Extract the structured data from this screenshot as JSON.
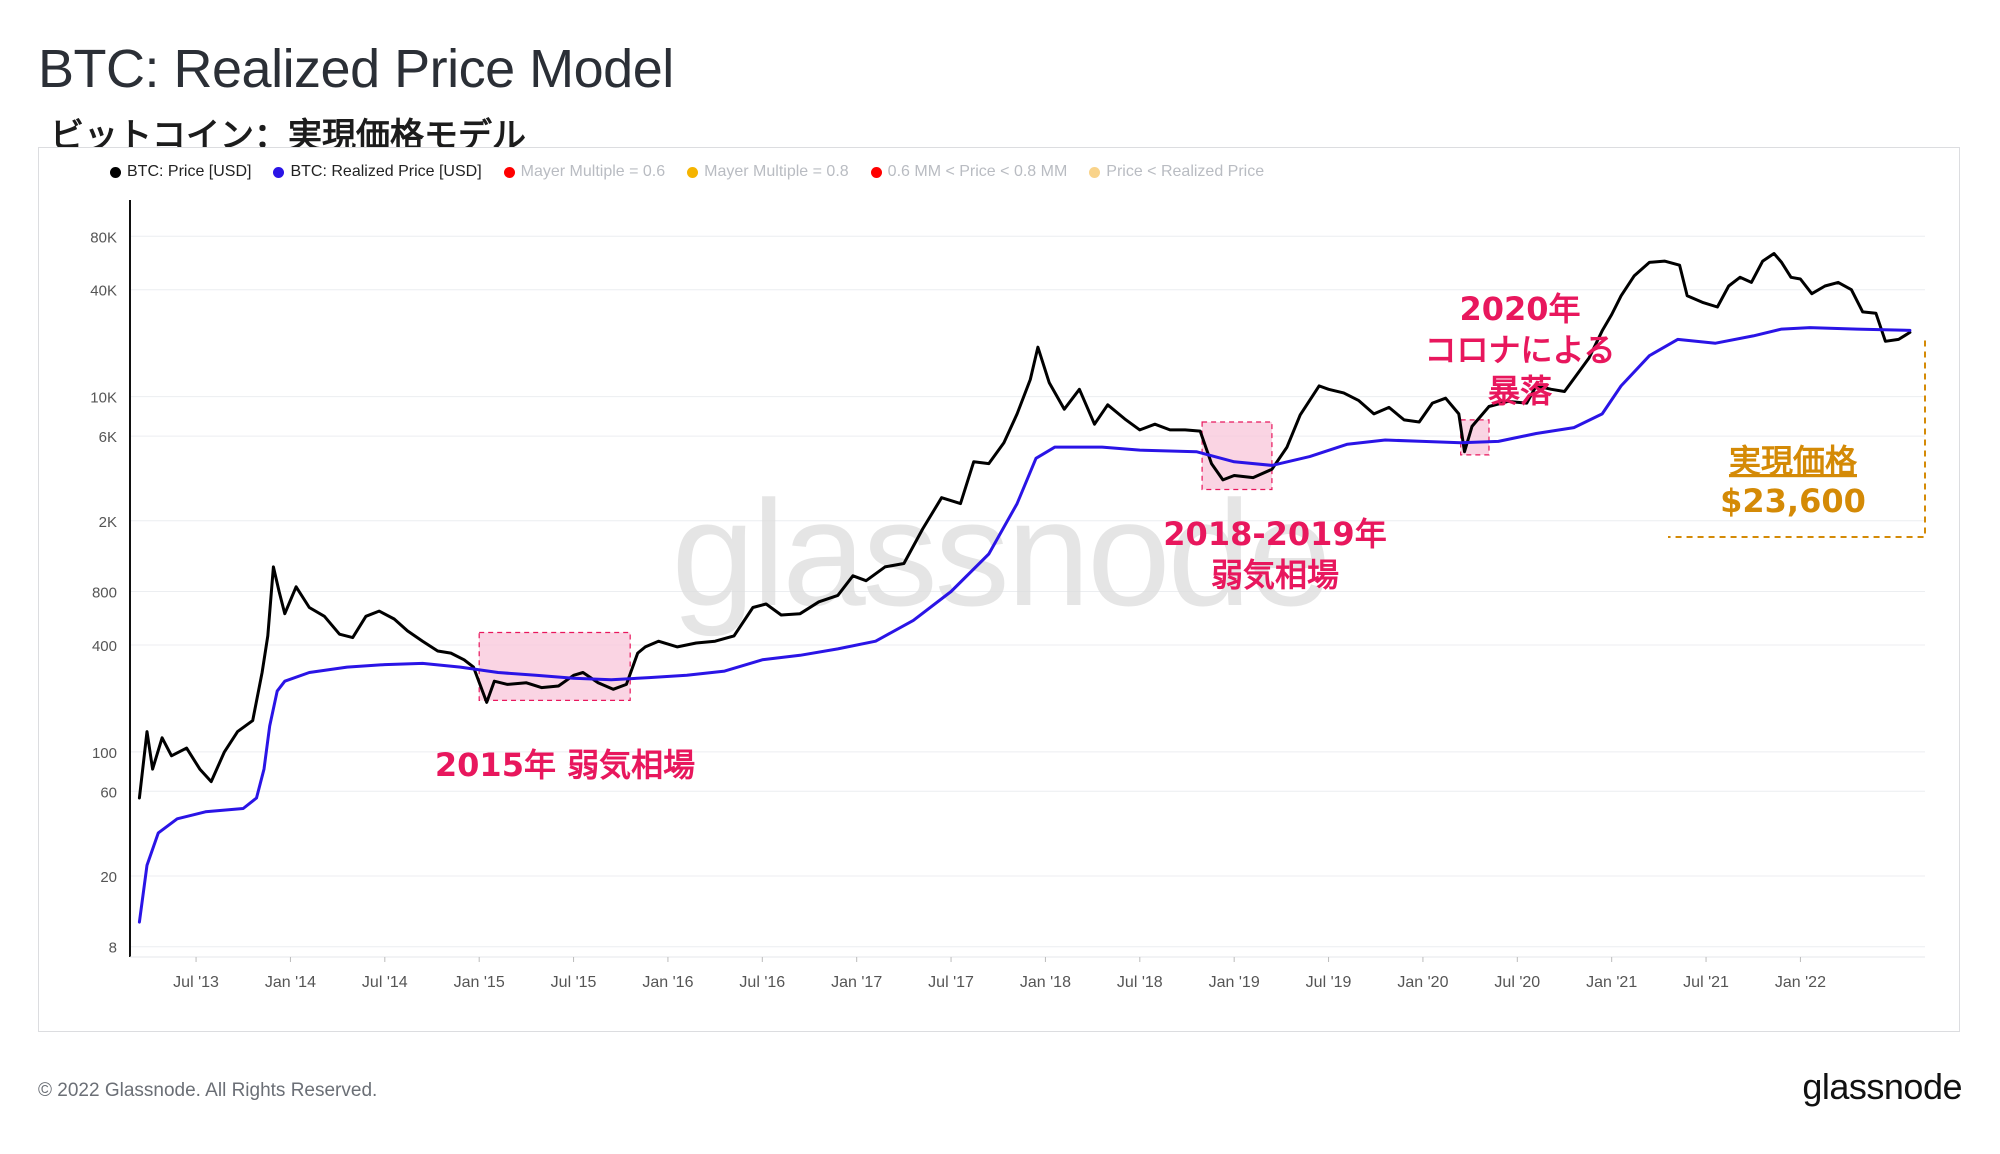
{
  "header": {
    "title": "BTC: Realized Price Model",
    "subtitle": "ビットコイン：実現価格モデル"
  },
  "footer": {
    "copyright": "© 2022 Glassnode. All Rights Reserved.",
    "logo": "glassnode"
  },
  "colors": {
    "price": "#000000",
    "realized": "#2a14e6",
    "annotation": "#e8175d",
    "highlight_fill": "#f8c6d9",
    "realized_label": "#d48a06"
  },
  "chart_data": {
    "type": "line",
    "title": "BTC: Realized Price Model",
    "scale": "log",
    "ylim": [
      7,
      120000
    ],
    "x_range": [
      "2013-04",
      "2022-07"
    ],
    "y_ticks": [
      {
        "value": 8,
        "label": "8"
      },
      {
        "value": 20,
        "label": "20"
      },
      {
        "value": 60,
        "label": "60"
      },
      {
        "value": 100,
        "label": "100"
      },
      {
        "value": 400,
        "label": "400"
      },
      {
        "value": 800,
        "label": "800"
      },
      {
        "value": 2000,
        "label": "2K"
      },
      {
        "value": 6000,
        "label": "6K"
      },
      {
        "value": 10000,
        "label": "10K"
      },
      {
        "value": 40000,
        "label": "40K"
      },
      {
        "value": 80000,
        "label": "80K"
      }
    ],
    "x_ticks": [
      {
        "t": 2013.5,
        "label": "Jul '13"
      },
      {
        "t": 2014.0,
        "label": "Jan '14"
      },
      {
        "t": 2014.5,
        "label": "Jul '14"
      },
      {
        "t": 2015.0,
        "label": "Jan '15"
      },
      {
        "t": 2015.5,
        "label": "Jul '15"
      },
      {
        "t": 2016.0,
        "label": "Jan '16"
      },
      {
        "t": 2016.5,
        "label": "Jul '16"
      },
      {
        "t": 2017.0,
        "label": "Jan '17"
      },
      {
        "t": 2017.5,
        "label": "Jul '17"
      },
      {
        "t": 2018.0,
        "label": "Jan '18"
      },
      {
        "t": 2018.5,
        "label": "Jul '18"
      },
      {
        "t": 2019.0,
        "label": "Jan '19"
      },
      {
        "t": 2019.5,
        "label": "Jul '19"
      },
      {
        "t": 2020.0,
        "label": "Jan '20"
      },
      {
        "t": 2020.5,
        "label": "Jul '20"
      },
      {
        "t": 2021.0,
        "label": "Jan '21"
      },
      {
        "t": 2021.5,
        "label": "Jul '21"
      },
      {
        "t": 2022.0,
        "label": "Jan '22"
      }
    ],
    "legend": [
      {
        "label": "BTC: Price [USD]",
        "color": "#000000",
        "active": true
      },
      {
        "label": "BTC: Realized Price [USD]",
        "color": "#2a14e6",
        "active": true
      },
      {
        "label": "Mayer Multiple = 0.6",
        "color": "#ff0000",
        "active": false
      },
      {
        "label": "Mayer Multiple = 0.8",
        "color": "#f5b400",
        "active": false
      },
      {
        "label": "0.6 MM < Price < 0.8 MM",
        "color": "#ff0000",
        "active": false
      },
      {
        "label": "Price < Realized Price",
        "color": "#f9d38a",
        "active": false
      }
    ],
    "series": [
      {
        "name": "BTC: Price [USD]",
        "points": [
          [
            2013.2,
            55
          ],
          [
            2013.24,
            130
          ],
          [
            2013.27,
            80
          ],
          [
            2013.32,
            120
          ],
          [
            2013.37,
            95
          ],
          [
            2013.45,
            105
          ],
          [
            2013.52,
            80
          ],
          [
            2013.58,
            68
          ],
          [
            2013.65,
            100
          ],
          [
            2013.72,
            130
          ],
          [
            2013.8,
            150
          ],
          [
            2013.85,
            280
          ],
          [
            2013.88,
            450
          ],
          [
            2013.91,
            1100
          ],
          [
            2013.94,
            800
          ],
          [
            2013.97,
            600
          ],
          [
            2014.03,
            850
          ],
          [
            2014.1,
            650
          ],
          [
            2014.18,
            580
          ],
          [
            2014.26,
            460
          ],
          [
            2014.33,
            440
          ],
          [
            2014.4,
            580
          ],
          [
            2014.47,
            620
          ],
          [
            2014.55,
            560
          ],
          [
            2014.62,
            480
          ],
          [
            2014.7,
            420
          ],
          [
            2014.78,
            370
          ],
          [
            2014.85,
            360
          ],
          [
            2014.92,
            330
          ],
          [
            2014.97,
            300
          ],
          [
            2015.04,
            190
          ],
          [
            2015.08,
            250
          ],
          [
            2015.15,
            240
          ],
          [
            2015.25,
            245
          ],
          [
            2015.33,
            230
          ],
          [
            2015.42,
            235
          ],
          [
            2015.5,
            270
          ],
          [
            2015.55,
            280
          ],
          [
            2015.63,
            245
          ],
          [
            2015.71,
            225
          ],
          [
            2015.78,
            240
          ],
          [
            2015.84,
            360
          ],
          [
            2015.88,
            390
          ],
          [
            2015.95,
            420
          ],
          [
            2016.05,
            390
          ],
          [
            2016.15,
            410
          ],
          [
            2016.25,
            420
          ],
          [
            2016.35,
            450
          ],
          [
            2016.45,
            650
          ],
          [
            2016.52,
            680
          ],
          [
            2016.6,
            590
          ],
          [
            2016.7,
            600
          ],
          [
            2016.8,
            700
          ],
          [
            2016.9,
            760
          ],
          [
            2016.98,
            980
          ],
          [
            2017.05,
            920
          ],
          [
            2017.15,
            1100
          ],
          [
            2017.25,
            1150
          ],
          [
            2017.35,
            1800
          ],
          [
            2017.45,
            2700
          ],
          [
            2017.55,
            2500
          ],
          [
            2017.62,
            4300
          ],
          [
            2017.7,
            4200
          ],
          [
            2017.78,
            5500
          ],
          [
            2017.85,
            8000
          ],
          [
            2017.92,
            12500
          ],
          [
            2017.96,
            19000
          ],
          [
            2018.02,
            12000
          ],
          [
            2018.1,
            8500
          ],
          [
            2018.18,
            11000
          ],
          [
            2018.26,
            7000
          ],
          [
            2018.33,
            9000
          ],
          [
            2018.42,
            7500
          ],
          [
            2018.5,
            6500
          ],
          [
            2018.58,
            7000
          ],
          [
            2018.66,
            6500
          ],
          [
            2018.74,
            6500
          ],
          [
            2018.82,
            6400
          ],
          [
            2018.88,
            4200
          ],
          [
            2018.94,
            3400
          ],
          [
            2019.0,
            3600
          ],
          [
            2019.1,
            3500
          ],
          [
            2019.2,
            3900
          ],
          [
            2019.28,
            5200
          ],
          [
            2019.35,
            7900
          ],
          [
            2019.45,
            11500
          ],
          [
            2019.5,
            11000
          ],
          [
            2019.58,
            10500
          ],
          [
            2019.66,
            9500
          ],
          [
            2019.74,
            8000
          ],
          [
            2019.82,
            8700
          ],
          [
            2019.9,
            7400
          ],
          [
            2019.98,
            7200
          ],
          [
            2020.05,
            9200
          ],
          [
            2020.12,
            9800
          ],
          [
            2020.19,
            8000
          ],
          [
            2020.22,
            4900
          ],
          [
            2020.26,
            6800
          ],
          [
            2020.35,
            8800
          ],
          [
            2020.45,
            9400
          ],
          [
            2020.55,
            9200
          ],
          [
            2020.6,
            11500
          ],
          [
            2020.68,
            11000
          ],
          [
            2020.75,
            10700
          ],
          [
            2020.82,
            13500
          ],
          [
            2020.88,
            16500
          ],
          [
            2020.95,
            23500
          ],
          [
            2021.0,
            29000
          ],
          [
            2021.05,
            37000
          ],
          [
            2021.12,
            48000
          ],
          [
            2021.2,
            57000
          ],
          [
            2021.28,
            58000
          ],
          [
            2021.36,
            55000
          ],
          [
            2021.4,
            37000
          ],
          [
            2021.48,
            34000
          ],
          [
            2021.56,
            32000
          ],
          [
            2021.62,
            42000
          ],
          [
            2021.68,
            47000
          ],
          [
            2021.74,
            44000
          ],
          [
            2021.8,
            58000
          ],
          [
            2021.86,
            64000
          ],
          [
            2021.9,
            57000
          ],
          [
            2021.95,
            47000
          ],
          [
            2022.0,
            46000
          ],
          [
            2022.06,
            38000
          ],
          [
            2022.13,
            42000
          ],
          [
            2022.2,
            44000
          ],
          [
            2022.27,
            40000
          ],
          [
            2022.33,
            30000
          ],
          [
            2022.4,
            29500
          ],
          [
            2022.45,
            20500
          ],
          [
            2022.52,
            21000
          ],
          [
            2022.58,
            23000
          ]
        ]
      },
      {
        "name": "BTC: Realized Price [USD]",
        "points": [
          [
            2013.2,
            11
          ],
          [
            2013.24,
            23
          ],
          [
            2013.3,
            35
          ],
          [
            2013.4,
            42
          ],
          [
            2013.55,
            46
          ],
          [
            2013.75,
            48
          ],
          [
            2013.82,
            55
          ],
          [
            2013.86,
            80
          ],
          [
            2013.89,
            140
          ],
          [
            2013.93,
            220
          ],
          [
            2013.97,
            250
          ],
          [
            2014.1,
            280
          ],
          [
            2014.3,
            300
          ],
          [
            2014.5,
            310
          ],
          [
            2014.7,
            315
          ],
          [
            2014.9,
            300
          ],
          [
            2015.1,
            280
          ],
          [
            2015.3,
            270
          ],
          [
            2015.5,
            260
          ],
          [
            2015.7,
            255
          ],
          [
            2015.9,
            262
          ],
          [
            2016.1,
            270
          ],
          [
            2016.3,
            285
          ],
          [
            2016.5,
            330
          ],
          [
            2016.7,
            350
          ],
          [
            2016.9,
            380
          ],
          [
            2017.1,
            420
          ],
          [
            2017.3,
            550
          ],
          [
            2017.5,
            800
          ],
          [
            2017.7,
            1300
          ],
          [
            2017.85,
            2500
          ],
          [
            2017.95,
            4500
          ],
          [
            2018.05,
            5200
          ],
          [
            2018.3,
            5200
          ],
          [
            2018.5,
            5000
          ],
          [
            2018.8,
            4900
          ],
          [
            2019.0,
            4300
          ],
          [
            2019.2,
            4100
          ],
          [
            2019.4,
            4600
          ],
          [
            2019.6,
            5400
          ],
          [
            2019.8,
            5700
          ],
          [
            2020.0,
            5600
          ],
          [
            2020.2,
            5500
          ],
          [
            2020.4,
            5600
          ],
          [
            2020.6,
            6200
          ],
          [
            2020.8,
            6700
          ],
          [
            2020.95,
            8000
          ],
          [
            2021.05,
            11500
          ],
          [
            2021.2,
            17000
          ],
          [
            2021.35,
            21000
          ],
          [
            2021.55,
            20000
          ],
          [
            2021.75,
            22000
          ],
          [
            2021.9,
            24000
          ],
          [
            2022.05,
            24500
          ],
          [
            2022.3,
            24000
          ],
          [
            2022.58,
            23600
          ]
        ]
      }
    ],
    "highlights": [
      {
        "t0": 2015.0,
        "t1": 2015.8,
        "ymin": 195,
        "ymax": 470,
        "label": "2015年 弱気相場"
      },
      {
        "t0": 2018.83,
        "t1": 2019.2,
        "ymin": 3000,
        "ymax": 7200,
        "label": "2018-2019年 弱気相場"
      },
      {
        "t0": 2020.2,
        "t1": 2020.35,
        "ymin": 4700,
        "ymax": 7400,
        "label": "2020年 コロナによる 暴落"
      }
    ],
    "annotations": {
      "bear_2015": "2015年 弱気相場",
      "bear_2018_line1": "2018-2019年",
      "bear_2018_line2": "弱気相場",
      "covid_line1": "2020年",
      "covid_line2": "コロナによる",
      "covid_line3": "暴落",
      "realized_label": "実現価格",
      "realized_value": "$23,600"
    },
    "watermark": "glassnode"
  }
}
